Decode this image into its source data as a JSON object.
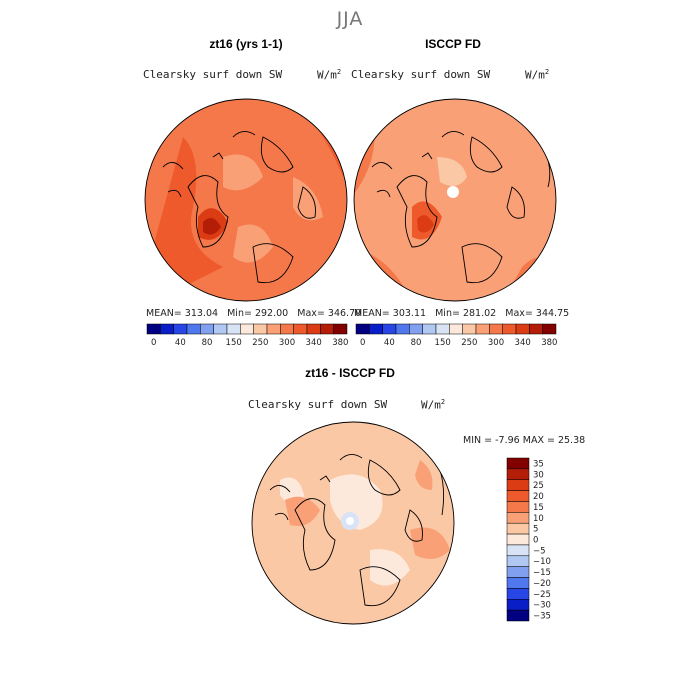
{
  "figure": {
    "season": "JJA"
  },
  "chart_data": [
    {
      "type": "heatmap",
      "title": "zt16 (yrs 1-1)",
      "variable": "Clearsky surf down SW",
      "units": "W/m",
      "units_exp": "2",
      "stats": {
        "mean_label": "MEAN=",
        "mean": "313.04",
        "min_label": "Min=",
        "min": "292.00",
        "max_label": "Max=",
        "max": "346.70"
      },
      "levels": [
        0,
        20,
        40,
        60,
        80,
        100,
        150,
        200,
        250,
        275,
        300,
        320,
        340,
        360,
        380
      ],
      "tick_labels": [
        "0",
        "40",
        "80",
        "150",
        "250",
        "300",
        "340",
        "380"
      ],
      "colors": [
        "#000080",
        "#0a1ec8",
        "#2846e6",
        "#5078ee",
        "#82a0f0",
        "#b0c8f2",
        "#d8e4f6",
        "#fde9dc",
        "#fbc8a6",
        "#f9a077",
        "#f5784a",
        "#ee5a2c",
        "#dc3c14",
        "#b41e08",
        "#820000"
      ],
      "projection": "north polar stereographic"
    },
    {
      "type": "heatmap",
      "title": "ISCCP FD",
      "variable": "Clearsky surf down SW",
      "units": "W/m",
      "units_exp": "2",
      "stats": {
        "mean_label": "MEAN=",
        "mean": "303.11",
        "min_label": "Min=",
        "min": "281.02",
        "max_label": "Max=",
        "max": "344.75"
      },
      "levels": [
        0,
        20,
        40,
        60,
        80,
        100,
        150,
        200,
        250,
        275,
        300,
        320,
        340,
        360,
        380
      ],
      "tick_labels": [
        "0",
        "40",
        "80",
        "150",
        "250",
        "300",
        "340",
        "380"
      ],
      "colors": [
        "#000080",
        "#0a1ec8",
        "#2846e6",
        "#5078ee",
        "#82a0f0",
        "#b0c8f2",
        "#d8e4f6",
        "#fde9dc",
        "#fbc8a6",
        "#f9a077",
        "#f5784a",
        "#ee5a2c",
        "#dc3c14",
        "#b41e08",
        "#820000"
      ],
      "projection": "north polar stereographic"
    },
    {
      "type": "heatmap",
      "title": "zt16 - ISCCP FD",
      "variable": "Clearsky surf down SW",
      "units": "W/m",
      "units_exp": "2",
      "stats": {
        "min_label": "MIN =",
        "min": "-7.96",
        "max_label": "MAX =",
        "max": "25.38"
      },
      "levels": [
        35,
        30,
        25,
        20,
        15,
        10,
        5,
        0,
        -5,
        -10,
        -15,
        -20,
        -25,
        -30,
        -35
      ],
      "tick_labels": [
        "35",
        "30",
        "25",
        "20",
        "15",
        "10",
        "5",
        "0",
        "−5",
        "−10",
        "−15",
        "−20",
        "−25",
        "−30",
        "−35"
      ],
      "colors": [
        "#820000",
        "#b41e08",
        "#dc3c14",
        "#ee5a2c",
        "#f5784a",
        "#f9a077",
        "#fbc8a6",
        "#fde9dc",
        "#d8e4f6",
        "#b0c8f2",
        "#82a0f0",
        "#5078ee",
        "#2846e6",
        "#0a1ec8",
        "#000080"
      ],
      "projection": "north polar stereographic"
    }
  ]
}
